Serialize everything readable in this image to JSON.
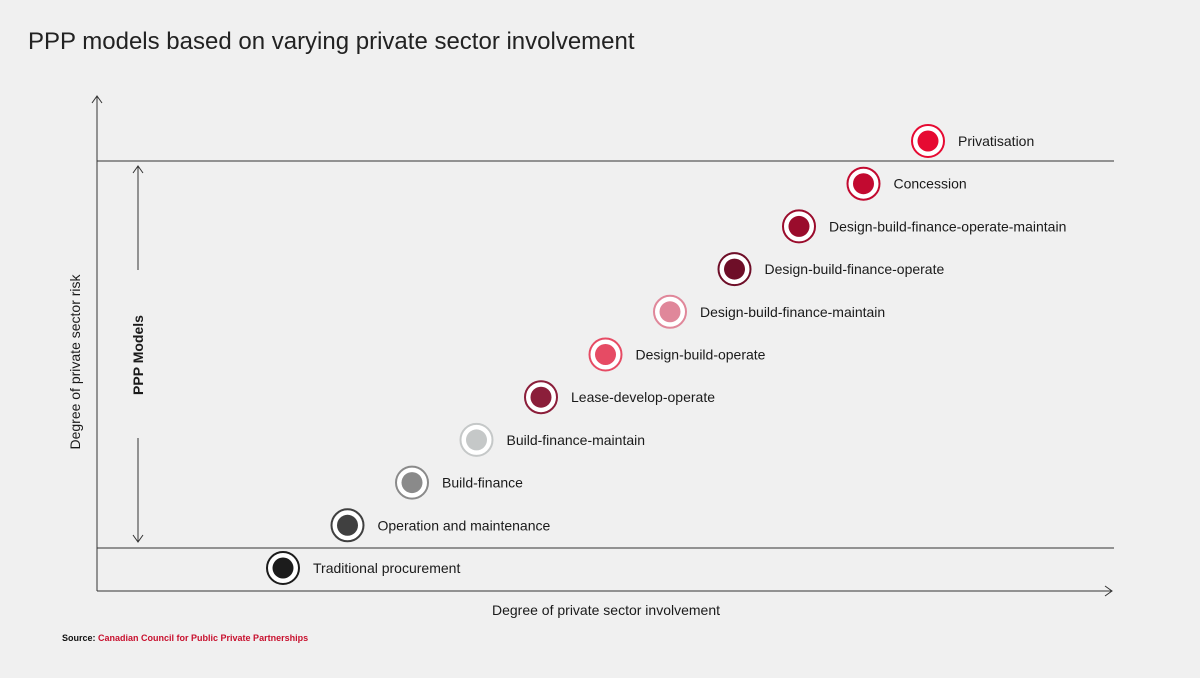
{
  "title": "PPP models based on varying private sector involvement",
  "x_axis_label": "Degree of private sector involvement",
  "y_axis_label": "Degree of private sector risk",
  "band_label": "PPP Models",
  "source": {
    "prefix": "Source:",
    "name": "Canadian Council for Public Private Partnerships"
  },
  "models": [
    {
      "label": "Traditional procurement",
      "color": "#1c1c1c"
    },
    {
      "label": "Operation and maintenance",
      "color": "#404040"
    },
    {
      "label": "Build-finance",
      "color": "#8a8a8a"
    },
    {
      "label": "Build-finance-maintain",
      "color": "#c5c8c8"
    },
    {
      "label": "Lease-develop-operate",
      "color": "#8b1e3a"
    },
    {
      "label": "Design-build-operate",
      "color": "#e64b64"
    },
    {
      "label": "Design-build-finance-maintain",
      "color": "#e0879a"
    },
    {
      "label": "Design-build-finance-operate",
      "color": "#6e0e28"
    },
    {
      "label": "Design-build-finance-operate-maintain",
      "color": "#9a0c2c"
    },
    {
      "label": "Concession",
      "color": "#c20a30"
    },
    {
      "label": "Privatisation",
      "color": "#e60a32"
    }
  ]
}
